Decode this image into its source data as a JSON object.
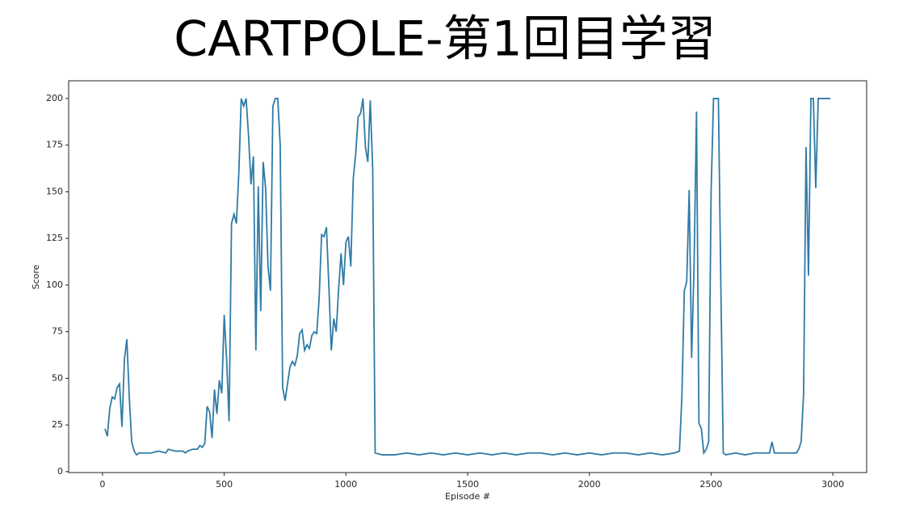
{
  "chart_data": {
    "type": "line",
    "title": "CARTPOLE-第1回目学習",
    "x_label": "Episode #",
    "y_label": "Score",
    "color": "#2f7ba6",
    "xlim": [
      -139,
      3139
    ],
    "ylim": [
      -0.5,
      209.5
    ],
    "xticks": [
      0,
      500,
      1000,
      1500,
      2000,
      2500,
      3000
    ],
    "yticks": [
      0,
      25,
      50,
      75,
      100,
      125,
      150,
      175,
      200
    ],
    "x": [
      10,
      20,
      30,
      40,
      50,
      60,
      70,
      80,
      90,
      100,
      110,
      120,
      130,
      140,
      150,
      170,
      200,
      230,
      260,
      270,
      300,
      330,
      340,
      350,
      370,
      390,
      400,
      410,
      420,
      430,
      440,
      450,
      460,
      470,
      480,
      490,
      500,
      510,
      520,
      530,
      540,
      550,
      560,
      570,
      580,
      590,
      600,
      610,
      620,
      630,
      640,
      650,
      660,
      670,
      680,
      690,
      700,
      710,
      720,
      730,
      740,
      750,
      760,
      770,
      780,
      790,
      800,
      810,
      820,
      830,
      840,
      850,
      860,
      870,
      880,
      890,
      900,
      910,
      920,
      930,
      940,
      950,
      960,
      970,
      980,
      990,
      1000,
      1010,
      1020,
      1030,
      1040,
      1050,
      1060,
      1070,
      1080,
      1090,
      1100,
      1110,
      1120,
      1150,
      1200,
      1250,
      1300,
      1350,
      1400,
      1450,
      1500,
      1550,
      1600,
      1650,
      1700,
      1750,
      1800,
      1850,
      1900,
      1950,
      2000,
      2050,
      2100,
      2150,
      2200,
      2250,
      2300,
      2350,
      2370,
      2380,
      2390,
      2400,
      2410,
      2420,
      2430,
      2440,
      2450,
      2460,
      2470,
      2480,
      2490,
      2500,
      2510,
      2520,
      2530,
      2540,
      2550,
      2560,
      2600,
      2640,
      2680,
      2720,
      2740,
      2750,
      2760,
      2800,
      2850,
      2860,
      2870,
      2880,
      2890,
      2900,
      2910,
      2920,
      2930,
      2940,
      2950,
      2990
    ],
    "values": [
      23,
      19,
      34,
      40,
      39,
      45,
      47,
      24,
      60,
      71,
      40,
      16,
      11,
      9,
      10,
      10,
      10,
      11,
      10,
      12,
      11,
      11,
      10,
      11,
      12,
      12,
      14,
      13,
      15,
      35,
      32,
      18,
      44,
      31,
      49,
      42,
      84,
      60,
      27,
      133,
      138,
      133,
      160,
      200,
      196,
      200,
      180,
      154,
      169,
      65,
      153,
      86,
      166,
      152,
      110,
      97,
      196,
      200,
      200,
      175,
      45,
      38,
      47,
      56,
      59,
      57,
      62,
      74,
      76,
      65,
      68,
      66,
      73,
      75,
      74,
      93,
      127,
      126,
      131,
      99,
      65,
      82,
      75,
      98,
      117,
      100,
      123,
      126,
      110,
      157,
      170,
      190,
      192,
      200,
      174,
      166,
      199,
      162,
      10,
      9,
      9,
      10,
      9,
      10,
      9,
      10,
      9,
      10,
      9,
      10,
      9,
      10,
      10,
      9,
      10,
      9,
      10,
      9,
      10,
      10,
      9,
      10,
      9,
      10,
      11,
      40,
      97,
      102,
      151,
      61,
      110,
      193,
      26,
      23,
      10,
      12,
      16,
      150,
      200,
      200,
      200,
      100,
      10,
      9,
      10,
      9,
      10,
      10,
      10,
      16,
      10,
      10,
      10,
      12,
      16,
      42,
      174,
      105,
      200,
      200,
      152,
      200,
      200,
      200
    ]
  }
}
